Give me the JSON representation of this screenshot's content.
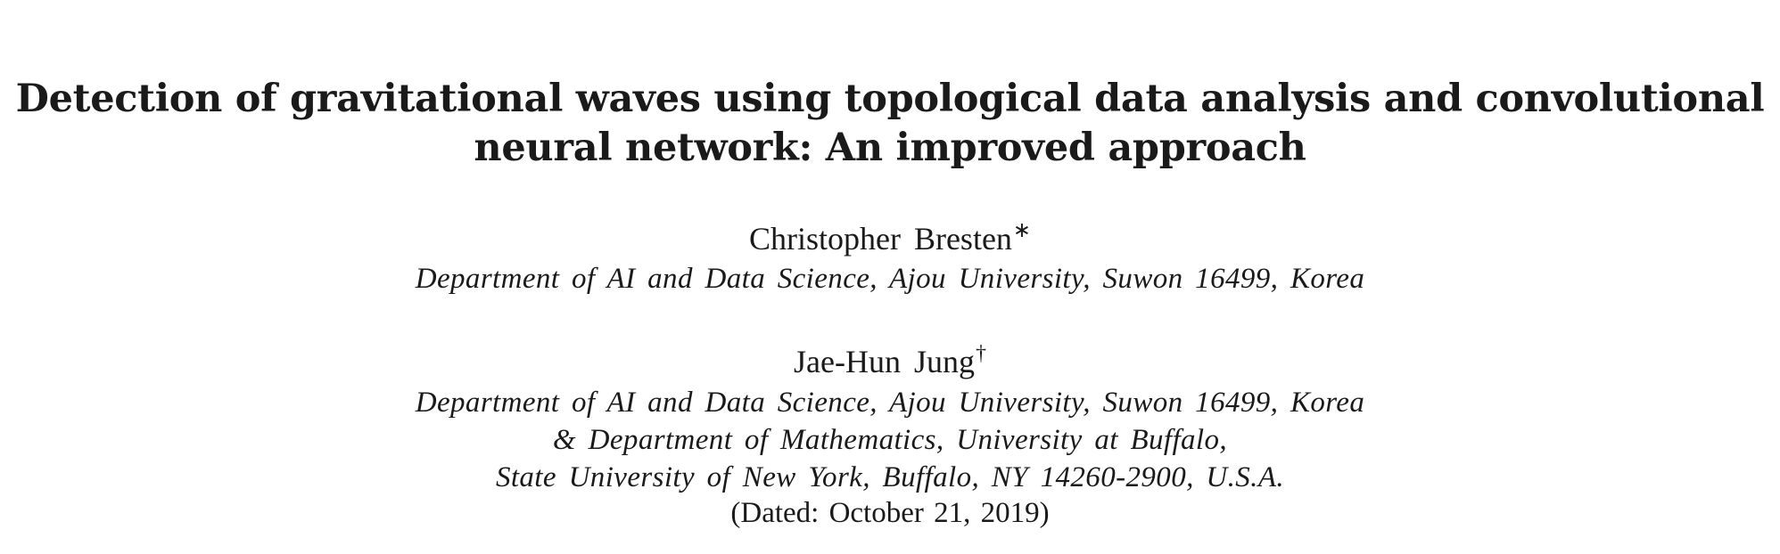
{
  "paper": {
    "title_lines": [
      "Detection of gravitational waves using topological data analysis and convolutional",
      "neural network: An improved approach"
    ],
    "authors": [
      {
        "name": "Christopher Bresten",
        "mark": "∗",
        "affiliation_lines": [
          "Department of AI and Data Science, Ajou University, Suwon 16499, Korea"
        ]
      },
      {
        "name": "Jae-Hun Jung",
        "mark": "†",
        "affiliation_lines": [
          "Department of AI and Data Science, Ajou University, Suwon 16499, Korea",
          "& Department of Mathematics, University at Buffalo,",
          "State University of New York, Buffalo, NY 14260-2900, U.S.A."
        ]
      }
    ],
    "dated": "(Dated: October 21, 2019)"
  }
}
